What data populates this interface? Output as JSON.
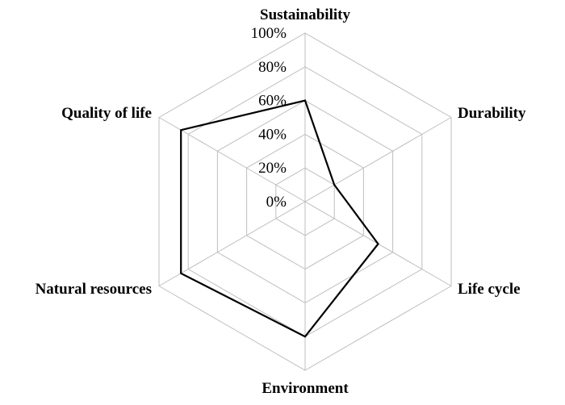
{
  "chart_data": {
    "type": "radar",
    "categories": [
      "Sustainability",
      "Durability",
      "Life cycle",
      "Environment",
      "Natural resources",
      "Quality of life"
    ],
    "series": [
      {
        "values": [
          60,
          20,
          50,
          80,
          85,
          85
        ]
      }
    ],
    "rlim": [
      0,
      100
    ],
    "tick_values": [
      0,
      20,
      40,
      60,
      80,
      100
    ],
    "tick_labels": [
      "0%",
      "20%",
      "40%",
      "60%",
      "80%",
      "100%"
    ],
    "grid": true,
    "legend": "none",
    "colors": {
      "grid": "#bfbfbf",
      "series": "#000000"
    }
  }
}
